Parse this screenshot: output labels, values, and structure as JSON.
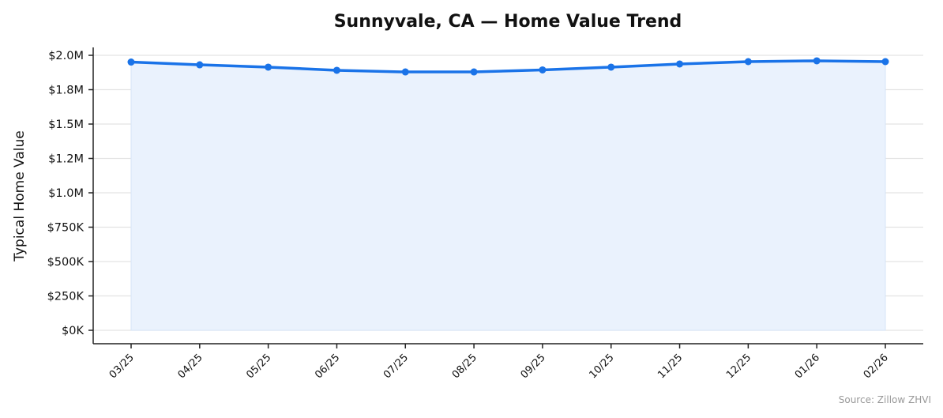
{
  "chart_data": {
    "type": "line",
    "title": "Sunnyvale, CA — Home Value Trend",
    "xlabel": "",
    "ylabel": "Typical Home Value",
    "categories": [
      "03/25",
      "04/25",
      "05/25",
      "06/25",
      "07/25",
      "08/25",
      "09/25",
      "10/25",
      "11/25",
      "12/25",
      "01/26",
      "02/26"
    ],
    "series": [
      {
        "name": "Typical Home Value",
        "values": [
          1951000,
          1931000,
          1914000,
          1891000,
          1879000,
          1879000,
          1894000,
          1914000,
          1937000,
          1954000,
          1960000,
          1954000
        ],
        "color": "#1a73e8",
        "fill": "#eaf2fd"
      }
    ],
    "ylim": [
      0,
      2000000
    ],
    "yticks": [
      0,
      250000,
      500000,
      750000,
      1000000,
      1250000,
      1500000,
      1750000,
      2000000
    ],
    "ytick_labels": [
      "$0K",
      "$250K",
      "$500K",
      "$750K",
      "$1.0M",
      "$1.2M",
      "$1.5M",
      "$1.8M",
      "$2.0M"
    ],
    "grid": true,
    "legend": null,
    "annotation": "Source: Zillow ZHVI"
  }
}
